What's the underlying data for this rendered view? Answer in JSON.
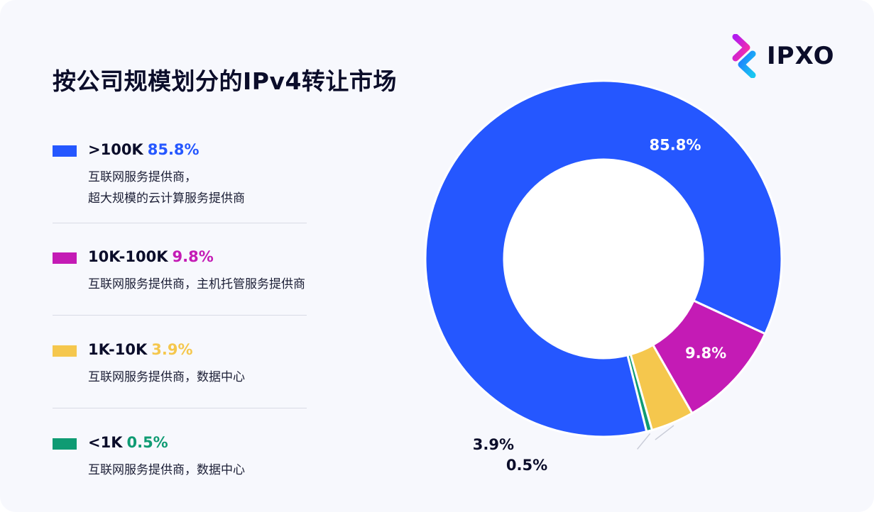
{
  "title": "按公司规模划分的IPv4转让市场",
  "logo": {
    "text": "IPXO",
    "icon": "ipxo-chevron-logo"
  },
  "legend": [
    {
      "label": ">100K",
      "pct": "85.8%",
      "desc_lines": [
        "互联网服务提供商，",
        "超大规模的云计算服务提供商"
      ],
      "color": "#2557ff"
    },
    {
      "label": "10K-100K",
      "pct": "9.8%",
      "desc_lines": [
        "互联网服务提供商，主机托管服务提供商"
      ],
      "color": "#c41bb5"
    },
    {
      "label": "1K-10K",
      "pct": "3.9%",
      "desc_lines": [
        "互联网服务提供商，数据中心"
      ],
      "color": "#f5c74d"
    },
    {
      "label": "<1K",
      "pct": "0.5%",
      "desc_lines": [
        "互联网服务提供商，数据中心"
      ],
      "color": "#0f9b73"
    }
  ],
  "chart_data": {
    "type": "pie",
    "donut": true,
    "categories": [
      ">100K",
      "10K-100K",
      "1K-10K",
      "<1K"
    ],
    "values": [
      85.8,
      9.8,
      3.9,
      0.5
    ],
    "data_labels": [
      "85.8%",
      "9.8%",
      "3.9%",
      "0.5%"
    ],
    "colors": [
      "#2557ff",
      "#c41bb5",
      "#f5c74d",
      "#0f9b73"
    ],
    "legend_position": "left",
    "title": "按公司规模划分的IPv4转让市场"
  }
}
